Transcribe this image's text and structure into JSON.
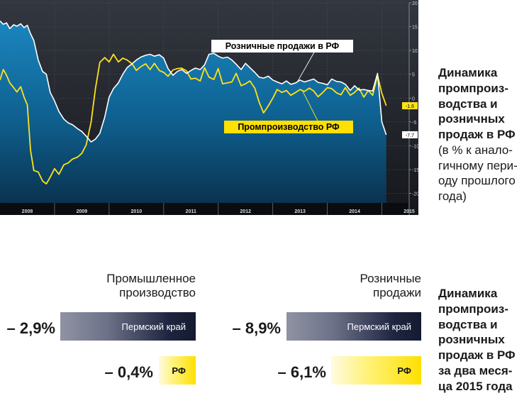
{
  "chart_data": {
    "type": "area",
    "x_label_years": [
      "2008",
      "2009",
      "2010",
      "2011",
      "2012",
      "2013",
      "2014",
      "2015"
    ],
    "ylim": [
      -22,
      20
    ],
    "y_ticks": [
      20,
      15,
      10,
      5,
      0,
      -5,
      -10,
      -15,
      -20
    ],
    "grid": true,
    "series": [
      {
        "name": "Розничные продажи в РФ",
        "style": "white-line-blue-area",
        "last_value_label": "-7.7",
        "x": [
          2008.0,
          2008.06,
          2008.12,
          2008.18,
          2008.25,
          2008.31,
          2008.38,
          2008.44,
          2008.5,
          2008.56,
          2008.62,
          2008.7,
          2008.78,
          2008.85,
          2008.92,
          2009.0,
          2009.08,
          2009.17,
          2009.25,
          2009.33,
          2009.42,
          2009.5,
          2009.58,
          2009.67,
          2009.75,
          2009.83,
          2009.92,
          2010.0,
          2010.08,
          2010.17,
          2010.25,
          2010.33,
          2010.42,
          2010.5,
          2010.58,
          2010.67,
          2010.75,
          2010.83,
          2010.92,
          2011.0,
          2011.08,
          2011.17,
          2011.25,
          2011.33,
          2011.42,
          2011.5,
          2011.58,
          2011.67,
          2011.75,
          2011.83,
          2011.92,
          2012.0,
          2012.08,
          2012.17,
          2012.25,
          2012.33,
          2012.42,
          2012.5,
          2012.58,
          2012.67,
          2012.75,
          2012.83,
          2012.92,
          2013.0,
          2013.08,
          2013.17,
          2013.25,
          2013.33,
          2013.42,
          2013.5,
          2013.58,
          2013.67,
          2013.75,
          2013.83,
          2013.92,
          2014.0,
          2014.08,
          2014.17,
          2014.25,
          2014.33,
          2014.42,
          2014.5,
          2014.58,
          2014.67,
          2014.75,
          2014.83,
          2014.92,
          2015.0,
          2015.08
        ],
        "values": [
          16.2,
          15.5,
          15.8,
          14.6,
          15.4,
          15.1,
          15.6,
          14.8,
          15.3,
          13.5,
          12.1,
          8.0,
          5.6,
          5.0,
          1.2,
          -0.6,
          -2.8,
          -4.4,
          -5.2,
          -5.6,
          -6.4,
          -7.0,
          -8.0,
          -9.2,
          -8.6,
          -7.4,
          -4.0,
          0.2,
          2.0,
          3.2,
          5.0,
          6.4,
          7.2,
          8.0,
          8.6,
          9.0,
          9.2,
          8.8,
          9.1,
          8.4,
          6.2,
          4.8,
          5.6,
          6.0,
          5.2,
          5.8,
          6.3,
          6.0,
          7.0,
          9.2,
          9.4,
          8.8,
          8.4,
          8.6,
          8.0,
          7.1,
          6.0,
          7.3,
          6.4,
          5.4,
          4.4,
          4.2,
          4.6,
          3.8,
          3.4,
          3.0,
          3.6,
          2.9,
          3.2,
          3.8,
          3.4,
          3.7,
          4.0,
          3.3,
          3.1,
          2.8,
          4.0,
          3.5,
          3.4,
          2.9,
          1.6,
          2.6,
          1.7,
          1.8,
          1.6,
          1.5,
          5.2,
          -5.0,
          -7.7
        ]
      },
      {
        "name": "Промпроизводство РФ",
        "style": "yellow-line",
        "last_value_label": "-1.6",
        "x": [
          2008.0,
          2008.06,
          2008.12,
          2008.18,
          2008.25,
          2008.31,
          2008.38,
          2008.44,
          2008.5,
          2008.56,
          2008.62,
          2008.7,
          2008.78,
          2008.85,
          2008.92,
          2009.0,
          2009.08,
          2009.17,
          2009.25,
          2009.33,
          2009.42,
          2009.5,
          2009.58,
          2009.67,
          2009.75,
          2009.83,
          2009.92,
          2010.0,
          2010.08,
          2010.17,
          2010.25,
          2010.33,
          2010.42,
          2010.5,
          2010.58,
          2010.67,
          2010.75,
          2010.83,
          2010.92,
          2011.0,
          2011.08,
          2011.17,
          2011.25,
          2011.33,
          2011.42,
          2011.5,
          2011.58,
          2011.67,
          2011.75,
          2011.83,
          2011.92,
          2012.0,
          2012.08,
          2012.17,
          2012.25,
          2012.33,
          2012.42,
          2012.5,
          2012.58,
          2012.67,
          2012.75,
          2012.83,
          2012.92,
          2013.0,
          2013.08,
          2013.17,
          2013.25,
          2013.33,
          2013.42,
          2013.5,
          2013.58,
          2013.67,
          2013.75,
          2013.83,
          2013.92,
          2014.0,
          2014.08,
          2014.17,
          2014.25,
          2014.33,
          2014.42,
          2014.5,
          2014.58,
          2014.67,
          2014.75,
          2014.83,
          2014.92,
          2015.0,
          2015.08
        ],
        "values": [
          3.8,
          6.0,
          4.8,
          3.2,
          2.2,
          1.3,
          2.4,
          0.2,
          -1.4,
          -11.0,
          -15.2,
          -15.5,
          -17.4,
          -18.0,
          -16.6,
          -14.8,
          -16.0,
          -14.0,
          -13.6,
          -12.8,
          -12.4,
          -11.6,
          -9.8,
          -5.0,
          2.0,
          7.5,
          8.5,
          7.6,
          9.2,
          7.6,
          8.4,
          8.0,
          7.2,
          5.8,
          6.6,
          7.2,
          6.0,
          7.3,
          5.8,
          5.4,
          4.6,
          5.9,
          6.2,
          6.3,
          5.7,
          4.0,
          4.2,
          3.6,
          6.4,
          4.4,
          3.9,
          6.2,
          3.0,
          3.2,
          3.4,
          5.2,
          2.6,
          3.0,
          3.6,
          2.1,
          -0.8,
          -3.1,
          -1.6,
          0.0,
          1.8,
          1.2,
          1.6,
          0.6,
          1.2,
          1.8,
          1.4,
          2.1,
          1.5,
          0.3,
          1.2,
          2.2,
          2.0,
          1.1,
          0.7,
          2.2,
          0.6,
          1.2,
          2.1,
          0.2,
          1.6,
          0.6,
          4.8,
          1.0,
          -1.6
        ]
      }
    ],
    "annotations": [
      "Розничные продажи в РФ",
      "Промпроизводство РФ"
    ]
  },
  "caption_top": {
    "bold": [
      "Динамика",
      "промпроиз-",
      "водства и",
      "розничных",
      "продаж в РФ"
    ],
    "sub": [
      "(в % к анало-",
      "гичному пери-",
      "оду прошлого",
      "года)"
    ]
  },
  "bars_section": {
    "columns": [
      {
        "title": [
          "Промышленное",
          "производство"
        ],
        "rows": [
          {
            "label": "Пермский край",
            "value_text": "– 2,9%",
            "value": -2.9
          },
          {
            "label": "РФ",
            "value_text": "– 0,4%",
            "value": -0.4
          }
        ]
      },
      {
        "title": [
          "Розничные",
          "продажи"
        ],
        "rows": [
          {
            "label": "Пермский край",
            "value_text": "– 8,9%",
            "value": -8.9
          },
          {
            "label": "РФ",
            "value_text": "– 6,1%",
            "value": -6.1
          }
        ]
      }
    ],
    "colors": {
      "perm_bar": "#1f2540",
      "rf_bar": "#ffe000"
    }
  },
  "caption_bottom": {
    "bold": [
      "Динамика",
      "промпроиз-",
      "водства и",
      "розничных",
      "продаж в РФ",
      "за два меся-",
      "ца 2015 года"
    ]
  },
  "colors": {
    "chart_bg": "#1c1f26",
    "area_fill": "#0f6fa0",
    "retail_line": "#ffffff",
    "industry_line": "#ffe21a",
    "label_box_yellow": "#ffe000"
  }
}
